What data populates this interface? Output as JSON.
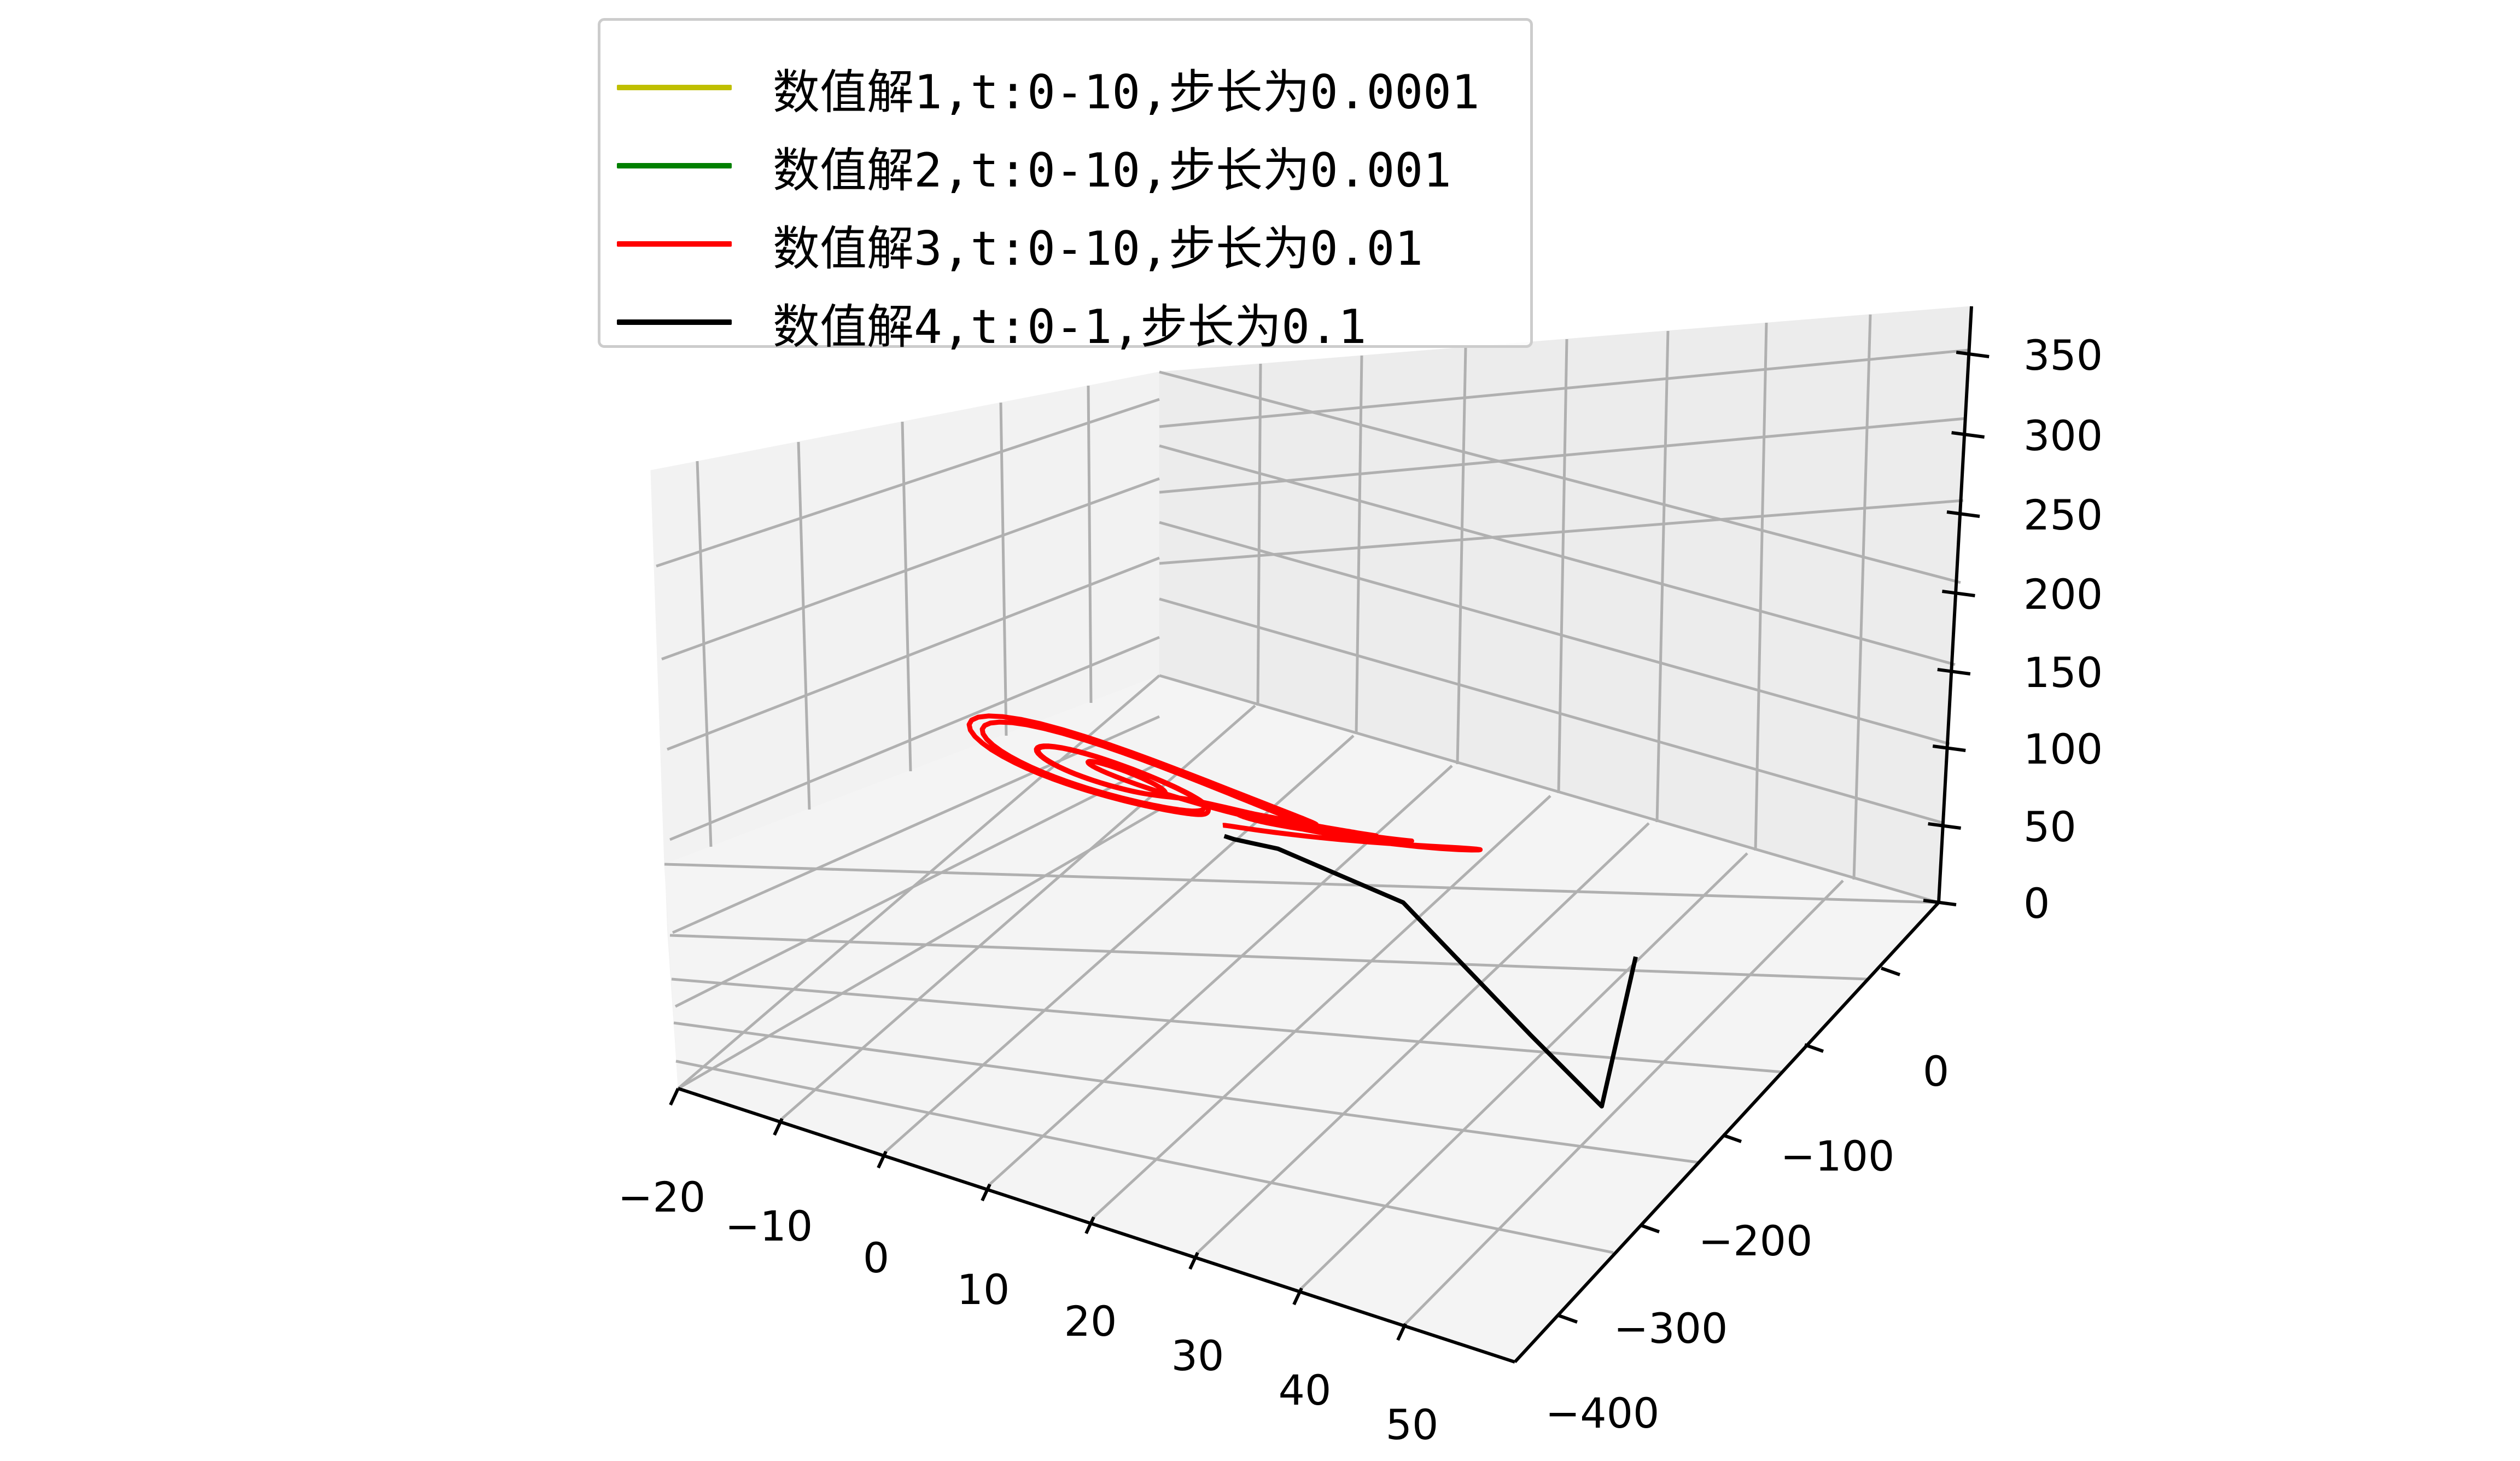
{
  "chart_data": {
    "type": "line3d",
    "title": "",
    "x_axis": {
      "label": "",
      "range": [
        -20,
        50
      ],
      "ticks": [
        "−20",
        "−10",
        "0",
        "10",
        "20",
        "30",
        "40",
        "50"
      ]
    },
    "y_axis": {
      "label": "",
      "range": [
        -400,
        0
      ],
      "ticks": [
        "−400",
        "−300",
        "−200",
        "−100",
        "0"
      ]
    },
    "z_axis": {
      "label": "",
      "range": [
        0,
        350
      ],
      "ticks": [
        "0",
        "50",
        "100",
        "150",
        "200",
        "250",
        "300",
        "350"
      ]
    },
    "grid": true,
    "legend_position": "top-left",
    "series": [
      {
        "name": "数值解1,t:0-10,步长为0.0001",
        "color": "#bfbf00",
        "description": "Lorenz attractor trajectory (butterfly), mostly hidden under series 3"
      },
      {
        "name": "数值解2,t:0-10,步长为0.001",
        "color": "#008000",
        "description": "Lorenz attractor trajectory (butterfly), mostly hidden under series 3"
      },
      {
        "name": "数值解3,t:0-10,步长为0.01",
        "color": "#ff0000",
        "description": "Lorenz attractor butterfly spanning roughly x −20..20, z 0..50"
      },
      {
        "name": "数值解4,t:0-1,步长为0.1",
        "color": "#000000",
        "description": "Unstable coarse-step trajectory diverging to large values",
        "points_xyz": [
          [
            0,
            1,
            1
          ],
          [
            1,
            -2,
            3
          ],
          [
            5,
            -8,
            10
          ],
          [
            18,
            -50,
            30
          ],
          [
            35,
            -150,
            40
          ],
          [
            50,
            -300,
            110
          ],
          [
            45,
            -180,
            130
          ]
        ]
      }
    ]
  }
}
